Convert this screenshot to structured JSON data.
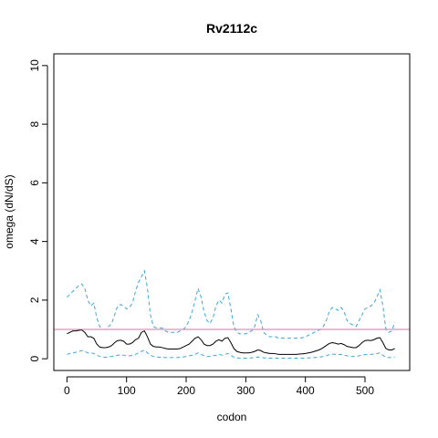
{
  "chart_data": {
    "type": "line",
    "title": "Rv2112c",
    "xlabel": "codon",
    "ylabel": "omega (dN/dS)",
    "xlim": [
      -22,
      575
    ],
    "ylim": [
      -0.4,
      10.4
    ],
    "x_ticks": [
      0,
      100,
      200,
      300,
      400,
      500
    ],
    "y_ticks": [
      0,
      2,
      4,
      6,
      8,
      10
    ],
    "grid": false,
    "legend": "none",
    "reference_line": {
      "y": 1,
      "color": "#cc79a7"
    },
    "colors": {
      "omega": "#000000",
      "upper": "#3ba7d8",
      "lower": "#3ba7d8"
    },
    "series": [
      {
        "key": "upper",
        "style": "dashed",
        "x": [
          0,
          5,
          10,
          15,
          20,
          25,
          30,
          35,
          40,
          45,
          50,
          55,
          60,
          65,
          70,
          75,
          80,
          85,
          90,
          95,
          100,
          105,
          110,
          115,
          120,
          125,
          130,
          135,
          140,
          145,
          150,
          155,
          160,
          165,
          170,
          175,
          180,
          185,
          190,
          195,
          200,
          205,
          210,
          215,
          220,
          225,
          230,
          235,
          240,
          245,
          250,
          255,
          260,
          265,
          270,
          275,
          280,
          285,
          290,
          295,
          300,
          305,
          310,
          315,
          320,
          325,
          330,
          335,
          340,
          345,
          350,
          355,
          360,
          365,
          370,
          375,
          380,
          385,
          390,
          395,
          400,
          405,
          410,
          415,
          420,
          425,
          430,
          435,
          440,
          445,
          450,
          455,
          460,
          465,
          470,
          475,
          480,
          485,
          490,
          495,
          500,
          505,
          510,
          515,
          520,
          525,
          530,
          535,
          540,
          545,
          550
        ],
        "y": [
          2.1,
          2.2,
          2.3,
          2.4,
          2.5,
          2.55,
          2.4,
          2.0,
          1.8,
          1.9,
          1.4,
          1.1,
          1.0,
          1.0,
          1.1,
          1.2,
          1.5,
          1.8,
          1.85,
          1.8,
          1.7,
          1.75,
          1.9,
          2.3,
          2.6,
          2.8,
          3.0,
          2.4,
          1.5,
          1.1,
          1.05,
          1.05,
          1.05,
          0.95,
          0.9,
          0.9,
          0.9,
          0.9,
          0.95,
          1.0,
          1.1,
          1.3,
          1.6,
          2.0,
          2.4,
          2.1,
          1.6,
          1.3,
          1.2,
          1.4,
          1.8,
          2.0,
          1.9,
          2.2,
          2.25,
          1.7,
          1.1,
          0.9,
          0.85,
          0.85,
          0.85,
          0.9,
          0.95,
          1.1,
          1.5,
          1.3,
          0.9,
          0.8,
          0.75,
          0.75,
          0.75,
          0.7,
          0.7,
          0.7,
          0.7,
          0.7,
          0.7,
          0.7,
          0.7,
          0.72,
          0.75,
          0.8,
          0.85,
          0.9,
          0.95,
          1.0,
          1.1,
          1.3,
          1.6,
          1.75,
          1.7,
          1.65,
          1.75,
          1.6,
          1.3,
          1.2,
          1.15,
          1.1,
          1.3,
          1.5,
          1.7,
          1.75,
          1.8,
          1.9,
          2.1,
          2.35,
          1.8,
          1.0,
          0.9,
          0.95,
          1.25
        ]
      },
      {
        "key": "omega",
        "style": "solid",
        "x": [
          0,
          5,
          10,
          15,
          20,
          25,
          30,
          35,
          40,
          45,
          50,
          55,
          60,
          65,
          70,
          75,
          80,
          85,
          90,
          95,
          100,
          105,
          110,
          115,
          120,
          125,
          130,
          135,
          140,
          145,
          150,
          155,
          160,
          165,
          170,
          175,
          180,
          185,
          190,
          195,
          200,
          205,
          210,
          215,
          220,
          225,
          230,
          235,
          240,
          245,
          250,
          255,
          260,
          265,
          270,
          275,
          280,
          285,
          290,
          295,
          300,
          305,
          310,
          315,
          320,
          325,
          330,
          335,
          340,
          345,
          350,
          355,
          360,
          365,
          370,
          375,
          380,
          385,
          390,
          395,
          400,
          405,
          410,
          415,
          420,
          425,
          430,
          435,
          440,
          445,
          450,
          455,
          460,
          465,
          470,
          475,
          480,
          485,
          490,
          495,
          500,
          505,
          510,
          515,
          520,
          525,
          530,
          535,
          540,
          545,
          550
        ],
        "y": [
          0.85,
          0.9,
          0.95,
          0.95,
          0.97,
          0.98,
          0.9,
          0.75,
          0.75,
          0.7,
          0.5,
          0.4,
          0.38,
          0.38,
          0.4,
          0.45,
          0.55,
          0.62,
          0.63,
          0.6,
          0.5,
          0.5,
          0.55,
          0.65,
          0.7,
          0.9,
          0.95,
          0.75,
          0.5,
          0.42,
          0.4,
          0.4,
          0.38,
          0.35,
          0.33,
          0.33,
          0.33,
          0.33,
          0.35,
          0.4,
          0.45,
          0.5,
          0.6,
          0.7,
          0.75,
          0.65,
          0.5,
          0.45,
          0.45,
          0.5,
          0.6,
          0.65,
          0.6,
          0.7,
          0.72,
          0.55,
          0.35,
          0.25,
          0.22,
          0.2,
          0.2,
          0.2,
          0.22,
          0.25,
          0.3,
          0.28,
          0.22,
          0.2,
          0.18,
          0.18,
          0.17,
          0.15,
          0.15,
          0.15,
          0.15,
          0.15,
          0.15,
          0.15,
          0.16,
          0.17,
          0.18,
          0.2,
          0.22,
          0.25,
          0.28,
          0.32,
          0.38,
          0.45,
          0.52,
          0.55,
          0.53,
          0.5,
          0.52,
          0.48,
          0.42,
          0.4,
          0.38,
          0.38,
          0.45,
          0.55,
          0.62,
          0.63,
          0.62,
          0.65,
          0.7,
          0.72,
          0.55,
          0.35,
          0.3,
          0.3,
          0.35
        ]
      },
      {
        "key": "lower",
        "style": "dashed",
        "x": [
          0,
          5,
          10,
          15,
          20,
          25,
          30,
          35,
          40,
          45,
          50,
          55,
          60,
          65,
          70,
          75,
          80,
          85,
          90,
          95,
          100,
          105,
          110,
          115,
          120,
          125,
          130,
          135,
          140,
          145,
          150,
          155,
          160,
          165,
          170,
          175,
          180,
          185,
          190,
          195,
          200,
          205,
          210,
          215,
          220,
          225,
          230,
          235,
          240,
          245,
          250,
          255,
          260,
          265,
          270,
          275,
          280,
          285,
          290,
          295,
          300,
          305,
          310,
          315,
          320,
          325,
          330,
          335,
          340,
          345,
          350,
          355,
          360,
          365,
          370,
          375,
          380,
          385,
          390,
          395,
          400,
          405,
          410,
          415,
          420,
          425,
          430,
          435,
          440,
          445,
          450,
          455,
          460,
          465,
          470,
          475,
          480,
          485,
          490,
          495,
          500,
          505,
          510,
          515,
          520,
          525,
          530,
          535,
          540,
          545,
          550
        ],
        "y": [
          0.15,
          0.18,
          0.2,
          0.22,
          0.25,
          0.28,
          0.25,
          0.2,
          0.2,
          0.18,
          0.12,
          0.08,
          0.05,
          0.05,
          0.06,
          0.08,
          0.1,
          0.12,
          0.13,
          0.12,
          0.1,
          0.1,
          0.12,
          0.15,
          0.2,
          0.25,
          0.3,
          0.2,
          0.12,
          0.08,
          0.06,
          0.05,
          0.05,
          0.04,
          0.04,
          0.04,
          0.04,
          0.04,
          0.05,
          0.06,
          0.08,
          0.1,
          0.12,
          0.15,
          0.2,
          0.15,
          0.1,
          0.08,
          0.08,
          0.1,
          0.12,
          0.15,
          0.12,
          0.15,
          0.18,
          0.12,
          0.05,
          0.03,
          0.02,
          0.02,
          0.02,
          0.02,
          0.03,
          0.04,
          0.06,
          0.05,
          0.03,
          0.02,
          0.02,
          0.02,
          0.02,
          0.02,
          0.02,
          0.02,
          0.02,
          0.02,
          0.02,
          0.02,
          0.02,
          0.02,
          0.02,
          0.03,
          0.03,
          0.04,
          0.05,
          0.06,
          0.08,
          0.1,
          0.14,
          0.16,
          0.15,
          0.14,
          0.15,
          0.12,
          0.1,
          0.08,
          0.08,
          0.08,
          0.1,
          0.12,
          0.14,
          0.15,
          0.15,
          0.16,
          0.18,
          0.2,
          0.12,
          0.05,
          0.04,
          0.04,
          0.06
        ]
      }
    ]
  }
}
